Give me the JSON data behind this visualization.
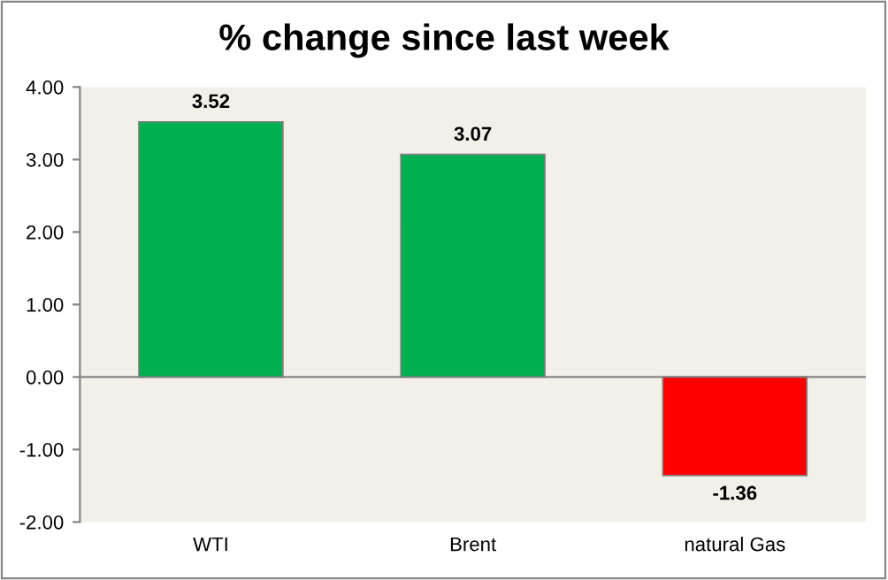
{
  "chart_data": {
    "type": "bar",
    "title": "% change since last week",
    "categories": [
      "WTI",
      "Brent",
      "natural Gas"
    ],
    "values": [
      3.52,
      3.07,
      -1.36
    ],
    "colors": [
      "#00b050",
      "#00b050",
      "#ff0000"
    ],
    "value_labels": [
      "3.52",
      "3.07",
      "-1.36"
    ],
    "ylim": [
      -2,
      4
    ],
    "yticks": [
      {
        "value": -2,
        "label": "-2.00"
      },
      {
        "value": -1,
        "label": "-1.00"
      },
      {
        "value": 0,
        "label": "0.00"
      },
      {
        "value": 1,
        "label": "1.00"
      },
      {
        "value": 2,
        "label": "2.00"
      },
      {
        "value": 3,
        "label": "3.00"
      },
      {
        "value": 4,
        "label": "4.00"
      }
    ],
    "ref_lines": [
      {
        "axis": "y",
        "value": 0,
        "color": "#868686"
      }
    ],
    "grid": false,
    "legend": false
  }
}
